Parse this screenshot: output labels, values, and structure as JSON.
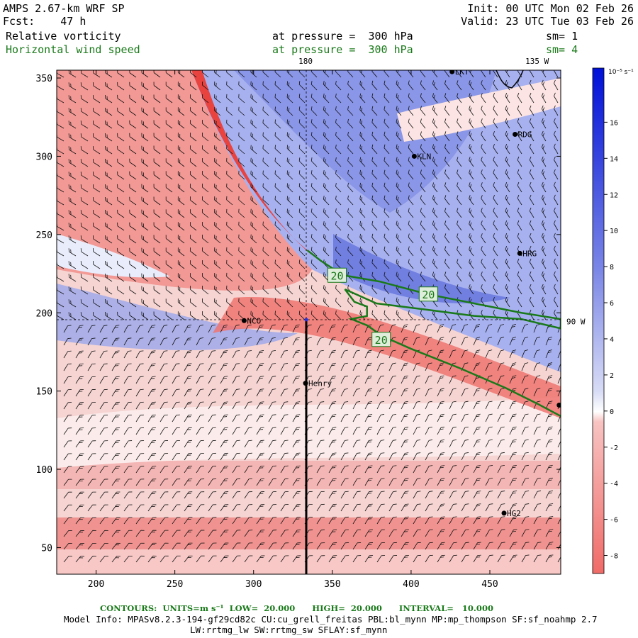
{
  "header": {
    "model": "AMPS 2.67-km WRF SP",
    "fcst": "Fcst:    47 h",
    "init": "Init: 00 UTC Mon 02 Feb 26",
    "valid": "Valid: 23 UTC Tue 03 Feb 26",
    "field1": "Relative vorticity",
    "field1_level": "at pressure =  300 hPa",
    "field1_sm": "sm= 1",
    "field2": "Horizontal wind speed",
    "field2_level": "at pressure =  300 hPa",
    "field2_sm": "sm= 4"
  },
  "colors": {
    "positive": "#2233dd",
    "negative": "#e8433f",
    "contour": "#1a7a1a",
    "barb": "#111111"
  },
  "chart_data": {
    "type": "heatmap",
    "title": "Relative vorticity",
    "x_ticks": [
      200,
      250,
      300,
      350,
      400,
      450
    ],
    "y_ticks": [
      50,
      100,
      150,
      200,
      250,
      300,
      350
    ],
    "xlim": [
      175,
      495
    ],
    "ylim": [
      33,
      355
    ],
    "colorbar": {
      "units": "10⁻⁵ s⁻¹",
      "ticks": [
        -8,
        -6,
        -4,
        -2,
        0,
        2,
        4,
        6,
        8,
        10,
        12,
        14,
        16
      ],
      "range": [
        -9,
        19
      ]
    },
    "lon_labels": [
      {
        "label": "180",
        "x": 333,
        "y": 355
      },
      {
        "label": "135 W",
        "x": 480,
        "y": 355
      },
      {
        "label": "90 W",
        "x": 495,
        "y": 195
      }
    ],
    "stations": [
      {
        "name": "LKT",
        "x": 426,
        "y": 354
      },
      {
        "name": "RDG",
        "x": 466,
        "y": 314
      },
      {
        "name": "KLN",
        "x": 402,
        "y": 300
      },
      {
        "name": "HRG",
        "x": 469,
        "y": 238
      },
      {
        "name": "NCO",
        "x": 294,
        "y": 195
      },
      {
        "name": "Henry",
        "x": 333,
        "y": 155
      },
      {
        "name": "",
        "x": 494,
        "y": 141
      },
      {
        "name": "HG2",
        "x": 459,
        "y": 72
      }
    ],
    "wind_speed_contour": {
      "level": 20,
      "units": "m s⁻¹",
      "labels": [
        {
          "label": "20",
          "x": 353,
          "y": 224
        },
        {
          "label": "20",
          "x": 411,
          "y": 212
        },
        {
          "label": "20",
          "x": 381,
          "y": 183
        }
      ],
      "line": [
        [
          334,
          240
        ],
        [
          343,
          233
        ],
        [
          357,
          224
        ],
        [
          380,
          220
        ],
        [
          410,
          212
        ],
        [
          440,
          206
        ],
        [
          470,
          200
        ],
        [
          495,
          196
        ],
        [
          495,
          190
        ],
        [
          470,
          196
        ],
        [
          440,
          198
        ],
        [
          410,
          202
        ],
        [
          378,
          206
        ],
        [
          358,
          215
        ],
        [
          364,
          207
        ],
        [
          372,
          204
        ],
        [
          372,
          198
        ],
        [
          362,
          196
        ],
        [
          372,
          192
        ],
        [
          382,
          185
        ],
        [
          400,
          177
        ],
        [
          430,
          165
        ],
        [
          460,
          152
        ],
        [
          480,
          142
        ],
        [
          495,
          134
        ]
      ]
    }
  },
  "footer": {
    "contours": "CONTOURS:  UNITS=m s⁻¹  LOW=  20.000      HIGH=  20.000      INTERVAL=   10.000",
    "model_info": "Model Info: MPASv8.2.3-194-gf29cd82c CU:cu_grell_freitas PBL:bl_mynn MP:mp_thompson SF:sf_noahmp 2.7",
    "model_info2": "LW:rrtmg_lw SW:rrtmg_sw SFLAY:sf_mynn"
  }
}
